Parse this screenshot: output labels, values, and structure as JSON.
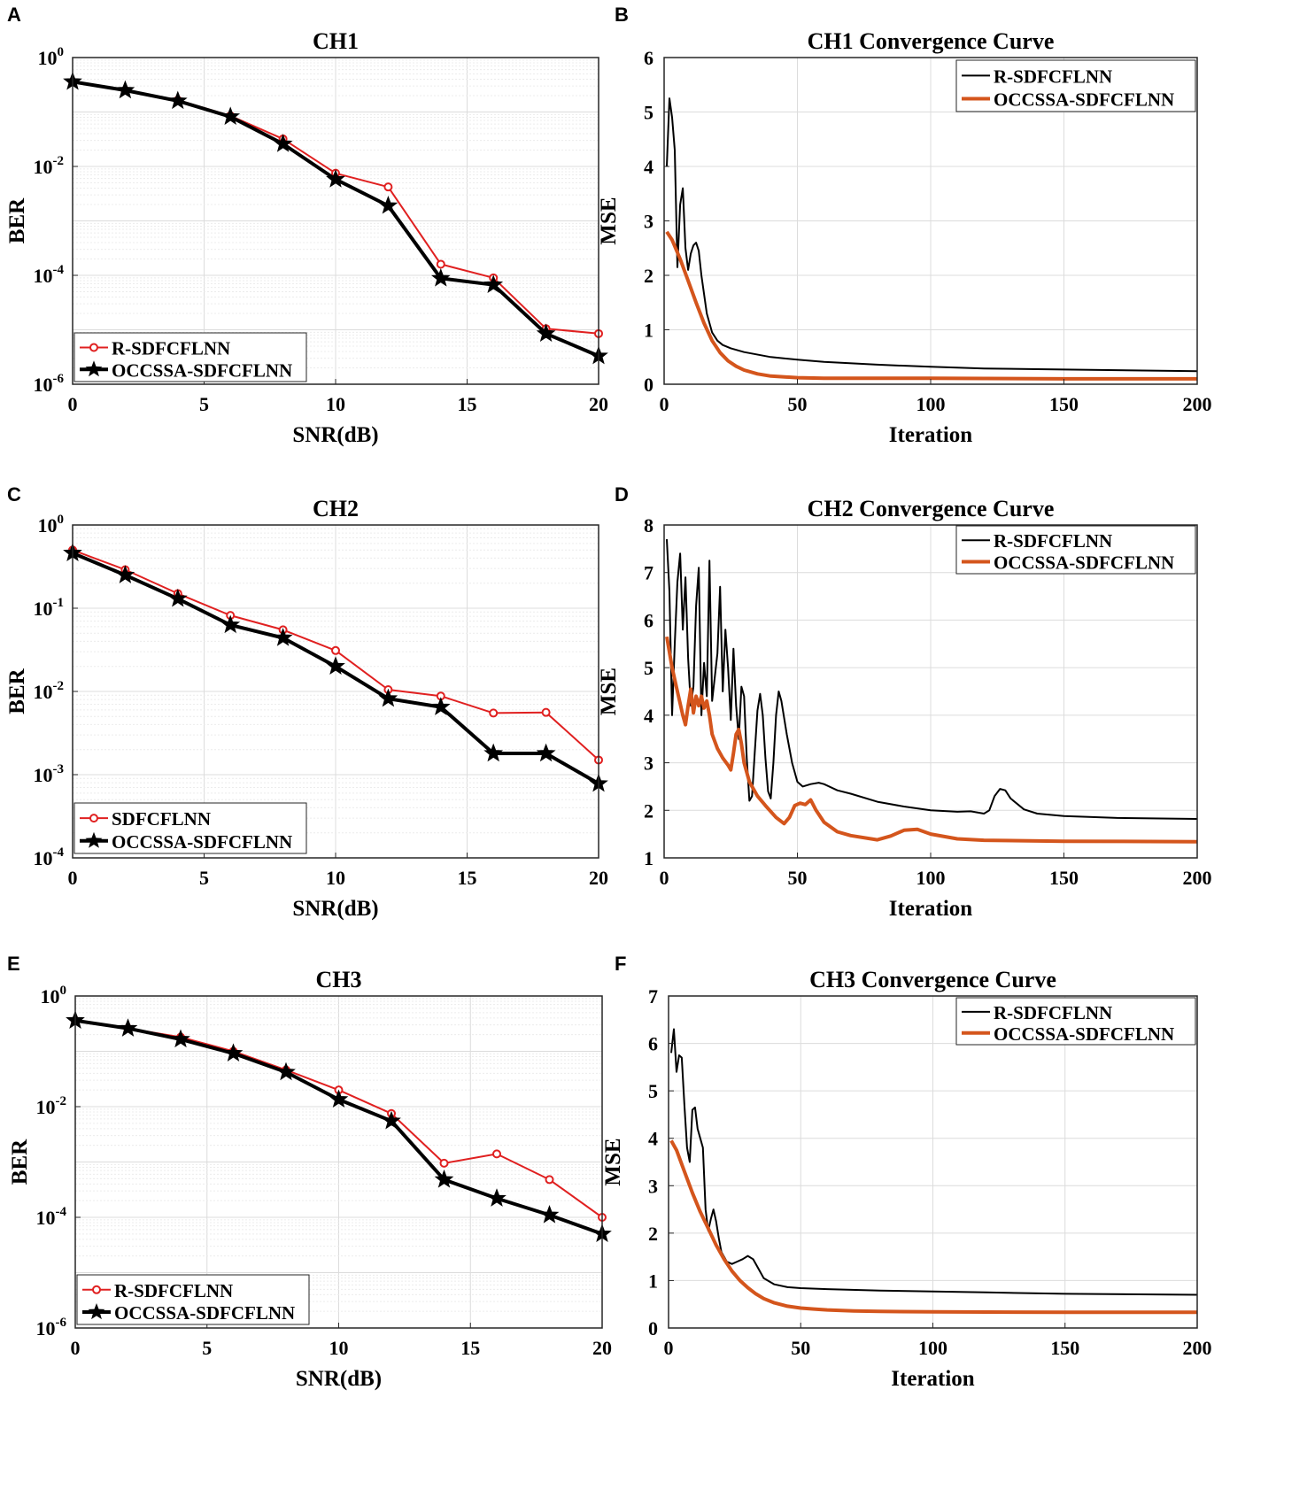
{
  "chart_data": [
    {
      "panel": "A",
      "type": "line",
      "scale": "log",
      "title": "CH1",
      "xlabel": "SNR(dB)",
      "ylabel": "BER",
      "xlim": [
        0,
        20
      ],
      "xticks": [
        0,
        5,
        10,
        15,
        20
      ],
      "ylim_exp": [
        -6,
        0
      ],
      "yticks_exp": [
        -6,
        -4,
        -2,
        0
      ],
      "legend_loc": "bottom-left",
      "x": [
        0,
        2,
        4,
        6,
        8,
        10,
        12,
        14,
        16,
        18,
        20
      ],
      "series": [
        {
          "name": "R-SDFCFLNN",
          "color": "#e02020",
          "marker": "circle",
          "values": [
            0.36,
            0.25,
            0.165,
            0.085,
            0.032,
            0.0075,
            0.0042,
            0.00016,
            9e-05,
            1.05e-05,
            8.5e-06
          ]
        },
        {
          "name": "OCCSSA-SDFCFLNN",
          "color": "#000000",
          "marker": "star",
          "values": [
            0.36,
            0.25,
            0.16,
            0.082,
            0.026,
            0.0058,
            0.0019,
            8.8e-05,
            6.7e-05,
            8.5e-06,
            3.3e-06
          ]
        }
      ]
    },
    {
      "panel": "B",
      "type": "line",
      "scale": "linear",
      "title": "CH1 Convergence Curve",
      "xlabel": "Iteration",
      "ylabel": "MSE",
      "xlim": [
        0,
        200
      ],
      "xticks": [
        0,
        50,
        100,
        150,
        200
      ],
      "ylim": [
        0,
        6
      ],
      "yticks": [
        0,
        1,
        2,
        3,
        4,
        5,
        6
      ],
      "legend_loc": "top-right",
      "series": [
        {
          "name": "R-SDFCFLNN",
          "color": "#000000",
          "width": 2,
          "x": [
            1,
            2,
            3,
            4,
            5,
            6,
            7,
            8,
            9,
            10,
            11,
            12,
            13,
            14,
            16,
            18,
            20,
            22,
            25,
            30,
            40,
            50,
            60,
            80,
            100,
            120,
            150,
            200
          ],
          "y": [
            4.0,
            5.25,
            4.9,
            4.3,
            2.15,
            3.3,
            3.6,
            2.5,
            2.1,
            2.4,
            2.55,
            2.6,
            2.45,
            2.0,
            1.3,
            0.95,
            0.8,
            0.72,
            0.66,
            0.59,
            0.5,
            0.45,
            0.41,
            0.36,
            0.32,
            0.29,
            0.27,
            0.24
          ]
        },
        {
          "name": "OCCSSA-SDFCFLNN",
          "color": "#d4551c",
          "width": 4,
          "x": [
            1,
            3,
            6,
            9,
            12,
            15,
            18,
            21,
            24,
            27,
            30,
            35,
            40,
            50,
            60,
            80,
            100,
            150,
            200
          ],
          "y": [
            2.8,
            2.65,
            2.3,
            1.9,
            1.5,
            1.12,
            0.8,
            0.58,
            0.43,
            0.33,
            0.26,
            0.19,
            0.15,
            0.12,
            0.11,
            0.11,
            0.11,
            0.1,
            0.1
          ]
        }
      ]
    },
    {
      "panel": "C",
      "type": "line",
      "scale": "log",
      "title": "CH2",
      "xlabel": "SNR(dB)",
      "ylabel": "BER",
      "xlim": [
        0,
        20
      ],
      "xticks": [
        0,
        5,
        10,
        15,
        20
      ],
      "ylim_exp": [
        -4,
        0
      ],
      "yticks_exp": [
        -4,
        -3,
        -2,
        -1,
        0
      ],
      "legend_loc": "bottom-left",
      "x": [
        0,
        2,
        4,
        6,
        8,
        10,
        12,
        14,
        16,
        18,
        20
      ],
      "series": [
        {
          "name": "SDFCFLNN",
          "color": "#e02020",
          "marker": "circle",
          "values": [
            0.5,
            0.29,
            0.15,
            0.082,
            0.055,
            0.031,
            0.0105,
            0.0088,
            0.0055,
            0.0056,
            0.0015
          ]
        },
        {
          "name": "OCCSSA-SDFCFLNN",
          "color": "#000000",
          "marker": "star",
          "values": [
            0.46,
            0.25,
            0.13,
            0.063,
            0.044,
            0.02,
            0.0082,
            0.0065,
            0.0018,
            0.0018,
            0.00078
          ]
        }
      ]
    },
    {
      "panel": "D",
      "type": "line",
      "scale": "linear",
      "title": "CH2 Convergence Curve",
      "xlabel": "Iteration",
      "ylabel": "MSE",
      "xlim": [
        0,
        200
      ],
      "xticks": [
        0,
        50,
        100,
        150,
        200
      ],
      "ylim": [
        1,
        8
      ],
      "yticks": [
        1,
        2,
        3,
        4,
        5,
        6,
        7,
        8
      ],
      "legend_loc": "top-right",
      "series": [
        {
          "name": "R-SDFCFLNN",
          "color": "#000000",
          "width": 2,
          "x": [
            1,
            2,
            3,
            4,
            5,
            6,
            7,
            8,
            9,
            10,
            11,
            12,
            13,
            14,
            15,
            16,
            17,
            18,
            19,
            20,
            21,
            22,
            23,
            24,
            25,
            26,
            27,
            28,
            29,
            30,
            31,
            32,
            33,
            34,
            35,
            36,
            37,
            38,
            39,
            40,
            41,
            42,
            43,
            44,
            46,
            48,
            50,
            52,
            55,
            58,
            60,
            65,
            70,
            80,
            90,
            100,
            110,
            115,
            120,
            122,
            124,
            126,
            128,
            130,
            135,
            140,
            150,
            170,
            200
          ],
          "y": [
            7.7,
            6.6,
            4.0,
            5.5,
            6.8,
            7.4,
            5.8,
            6.9,
            5.2,
            4.2,
            4.6,
            6.3,
            7.1,
            4.0,
            5.1,
            4.4,
            7.25,
            4.3,
            4.8,
            5.3,
            6.7,
            4.5,
            5.8,
            5.0,
            3.9,
            5.4,
            4.2,
            3.5,
            4.6,
            4.4,
            3.1,
            2.2,
            2.3,
            3.2,
            4.1,
            4.45,
            4.0,
            3.1,
            2.4,
            2.25,
            3.0,
            4.0,
            4.5,
            4.3,
            3.6,
            3.0,
            2.6,
            2.5,
            2.55,
            2.58,
            2.55,
            2.42,
            2.35,
            2.18,
            2.08,
            2.0,
            1.97,
            1.98,
            1.93,
            2.0,
            2.3,
            2.45,
            2.42,
            2.25,
            2.02,
            1.93,
            1.88,
            1.84,
            1.82
          ]
        },
        {
          "name": "OCCSSA-SDFCFLNN",
          "color": "#d4551c",
          "width": 4,
          "x": [
            1,
            3,
            5,
            7,
            8,
            9,
            10,
            11,
            12,
            13,
            14,
            15,
            16,
            17,
            18,
            20,
            22,
            24,
            25,
            26,
            27,
            28,
            29,
            30,
            32,
            35,
            38,
            42,
            45,
            47,
            49,
            51,
            53,
            55,
            57,
            60,
            65,
            70,
            80,
            85,
            90,
            95,
            100,
            110,
            120,
            150,
            200
          ],
          "y": [
            5.65,
            5.0,
            4.5,
            4.0,
            3.8,
            4.2,
            4.55,
            4.05,
            4.4,
            4.2,
            4.4,
            4.15,
            4.3,
            4.0,
            3.6,
            3.3,
            3.1,
            2.95,
            2.85,
            3.2,
            3.6,
            3.7,
            3.4,
            3.0,
            2.6,
            2.3,
            2.1,
            1.85,
            1.72,
            1.85,
            2.1,
            2.15,
            2.12,
            2.22,
            2.0,
            1.75,
            1.55,
            1.47,
            1.38,
            1.46,
            1.58,
            1.6,
            1.5,
            1.4,
            1.37,
            1.35,
            1.34
          ]
        }
      ]
    },
    {
      "panel": "E",
      "type": "line",
      "scale": "log",
      "title": "CH3",
      "xlabel": "SNR(dB)",
      "ylabel": "BER",
      "xlim": [
        0,
        20
      ],
      "xticks": [
        0,
        5,
        10,
        15,
        20
      ],
      "ylim_exp": [
        -6,
        0
      ],
      "yticks_exp": [
        -6,
        -4,
        -2,
        0
      ],
      "legend_loc": "bottom-left",
      "x": [
        0,
        2,
        4,
        6,
        8,
        10,
        12,
        14,
        16,
        18,
        20
      ],
      "series": [
        {
          "name": "R-SDFCFLNN",
          "color": "#e02020",
          "marker": "circle",
          "values": [
            0.36,
            0.26,
            0.18,
            0.1,
            0.046,
            0.02,
            0.0075,
            0.00095,
            0.0014,
            0.00048,
            0.0001
          ]
        },
        {
          "name": "OCCSSA-SDFCFLNN",
          "color": "#000000",
          "marker": "star",
          "values": [
            0.36,
            0.26,
            0.165,
            0.092,
            0.042,
            0.0135,
            0.0055,
            0.00048,
            0.00022,
            0.00011,
            5e-05
          ]
        }
      ]
    },
    {
      "panel": "F",
      "type": "line",
      "scale": "linear",
      "title": "CH3 Convergence Curve",
      "xlabel": "Iteration",
      "ylabel": "MSE",
      "xlim": [
        0,
        200
      ],
      "xticks": [
        0,
        50,
        100,
        150,
        200
      ],
      "ylim": [
        0,
        7
      ],
      "yticks": [
        0,
        1,
        2,
        3,
        4,
        5,
        6,
        7
      ],
      "legend_loc": "top-right",
      "series": [
        {
          "name": "R-SDFCFLNN",
          "color": "#000000",
          "width": 2,
          "x": [
            1,
            2,
            3,
            4,
            5,
            6,
            7,
            8,
            9,
            10,
            11,
            12,
            13,
            14,
            15,
            16,
            17,
            18,
            19,
            20,
            22,
            24,
            26,
            28,
            30,
            32,
            34,
            36,
            40,
            45,
            50,
            60,
            80,
            100,
            120,
            150,
            200
          ],
          "y": [
            5.8,
            6.3,
            5.4,
            5.75,
            5.7,
            4.7,
            3.8,
            3.5,
            4.6,
            4.65,
            4.2,
            4.0,
            3.8,
            2.5,
            2.05,
            2.3,
            2.5,
            2.25,
            1.9,
            1.6,
            1.4,
            1.35,
            1.4,
            1.45,
            1.52,
            1.45,
            1.25,
            1.05,
            0.92,
            0.86,
            0.84,
            0.82,
            0.79,
            0.77,
            0.75,
            0.72,
            0.7
          ]
        },
        {
          "name": "OCCSSA-SDFCFLNN",
          "color": "#d4551c",
          "width": 4,
          "x": [
            1,
            3,
            6,
            9,
            12,
            15,
            18,
            21,
            24,
            27,
            30,
            33,
            36,
            40,
            45,
            50,
            55,
            60,
            70,
            80,
            100,
            150,
            200
          ],
          "y": [
            3.95,
            3.75,
            3.3,
            2.85,
            2.45,
            2.1,
            1.75,
            1.45,
            1.2,
            1.0,
            0.85,
            0.72,
            0.62,
            0.53,
            0.46,
            0.42,
            0.4,
            0.38,
            0.36,
            0.35,
            0.34,
            0.33,
            0.33
          ]
        }
      ]
    }
  ]
}
